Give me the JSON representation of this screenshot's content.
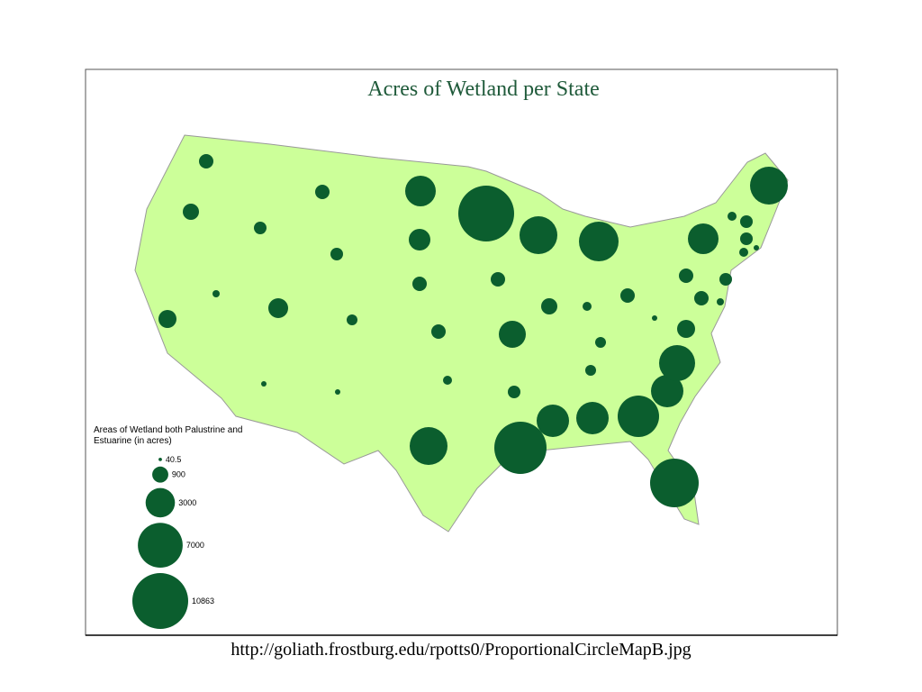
{
  "map": {
    "title": "Acres of Wetland per State",
    "legend": {
      "title": "Areas of Wetland both Palustrine and Estuarine (in acres)",
      "items": [
        40.5,
        900,
        3000,
        7000,
        10863
      ]
    }
  },
  "caption": "http://goliath.frostburg.edu/rpotts0/ProportionalCircleMapB.jpg"
}
